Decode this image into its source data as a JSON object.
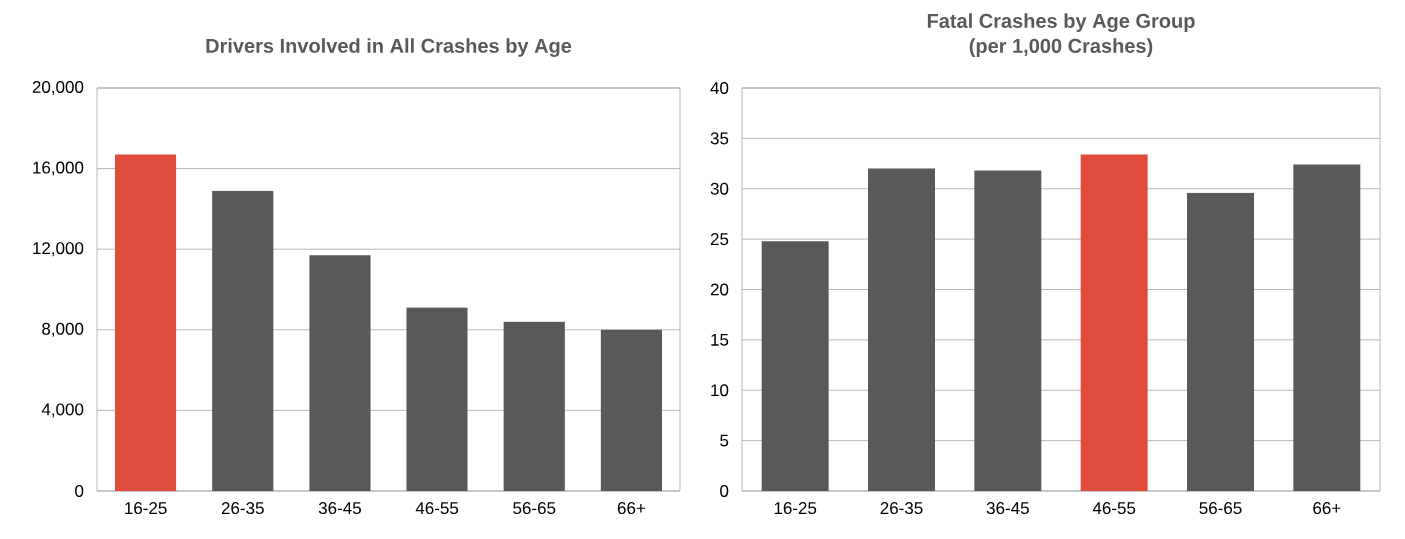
{
  "chart_data": [
    {
      "type": "bar",
      "title": "Drivers Involved in All Crashes by Age",
      "categories": [
        "16-25",
        "26-35",
        "36-45",
        "46-55",
        "56-65",
        "66+"
      ],
      "values": [
        16700,
        14900,
        11700,
        9100,
        8400,
        8000
      ],
      "colors": [
        "#e04c3b",
        "#58595b",
        "#58595b",
        "#58595b",
        "#58595b",
        "#58595b"
      ],
      "ylim": [
        0,
        20000
      ],
      "yticks": [
        0,
        {
          "value": 4000,
          "label": "4,000"
        },
        {
          "value": 8000,
          "label": "8,000"
        },
        {
          "value": 12000,
          "label": "12,000"
        },
        {
          "value": 16000,
          "label": "16,000"
        },
        {
          "value": 20000,
          "label": "20,000"
        }
      ],
      "grid": "y"
    },
    {
      "type": "bar",
      "title": "Fatal Crashes by Age Group",
      "subtitle": "(per 1,000 Crashes)",
      "categories": [
        "16-25",
        "26-35",
        "36-45",
        "46-55",
        "56-65",
        "66+"
      ],
      "values": [
        24.8,
        32.0,
        31.8,
        33.4,
        29.6,
        32.4
      ],
      "colors": [
        "#58595b",
        "#58595b",
        "#58595b",
        "#e04c3b",
        "#58595b",
        "#58595b"
      ],
      "ylim": [
        0,
        40
      ],
      "yticks": [
        0,
        5,
        10,
        15,
        20,
        25,
        30,
        35,
        40
      ],
      "grid": "y"
    }
  ]
}
